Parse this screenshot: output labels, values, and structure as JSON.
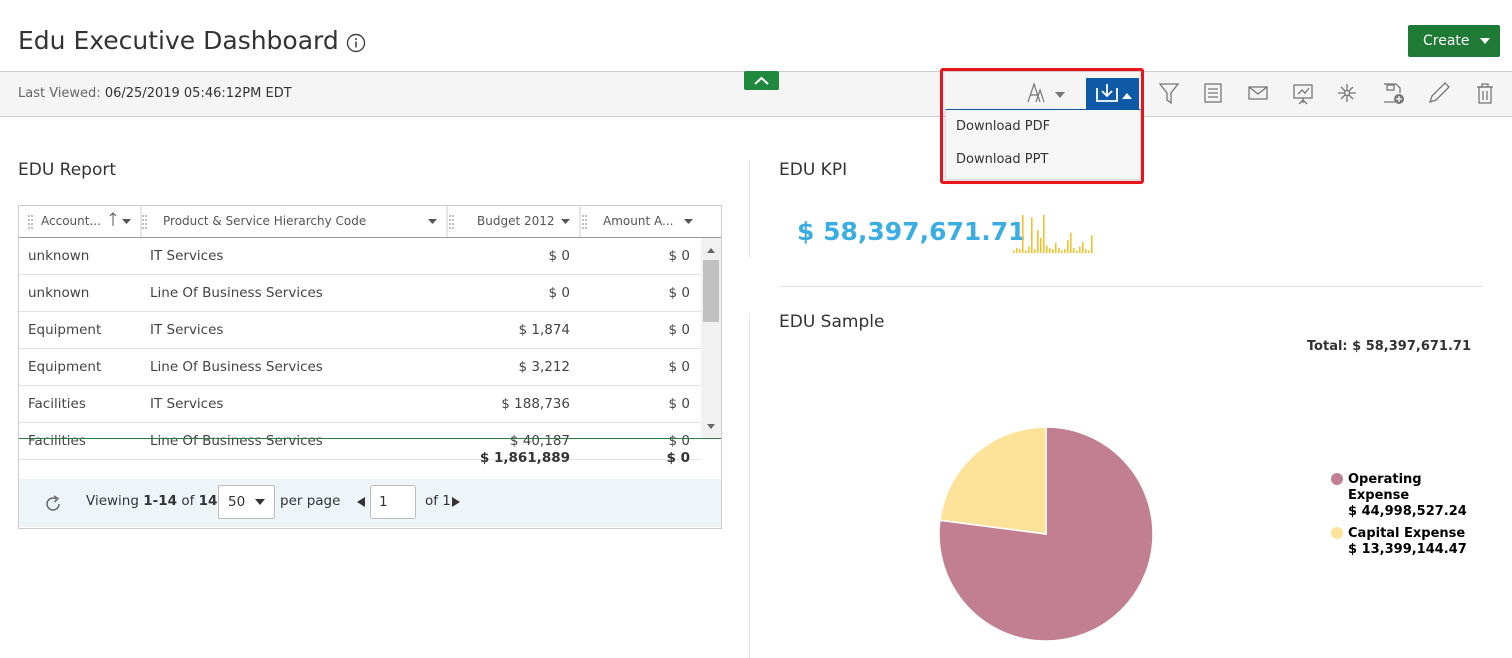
{
  "header": {
    "title": "Edu Executive Dashboard",
    "create_button": "Create"
  },
  "toolbar": {
    "last_viewed_label": "Last Viewed:",
    "last_viewed": "06/25/2019 05:46:12PM EDT"
  },
  "download_menu": {
    "items": [
      "Download PDF",
      "Download PPT"
    ]
  },
  "report": {
    "title": "EDU Report",
    "columns": [
      "Account...",
      "Product & Service Hierarchy Code",
      "Budget 2012",
      "Amount A..."
    ],
    "rows": [
      [
        "unknown",
        "IT Services",
        "$ 0",
        "$ 0"
      ],
      [
        "unknown",
        "Line Of Business Services",
        "$ 0",
        "$ 0"
      ],
      [
        "Equipment",
        "IT Services",
        "$ 1,874",
        "$ 0"
      ],
      [
        "Equipment",
        "Line Of Business Services",
        "$ 3,212",
        "$ 0"
      ],
      [
        "Facilities",
        "IT Services",
        "$ 188,736",
        "$ 0"
      ],
      [
        "Facilities",
        "Line Of Business Services",
        "$ 40,187",
        "$ 0"
      ]
    ],
    "totals": [
      "$ 1,861,889",
      "$ 0"
    ],
    "pagination": {
      "viewing": "Viewing",
      "range": "1-14",
      "of": "of",
      "count": "14",
      "per_page_value": "50",
      "per_page": "per page",
      "page": "1",
      "of_pages": "of 1"
    }
  },
  "kpi": {
    "title": "EDU KPI",
    "value": "$ 58,397,671.71",
    "sparkline": [
      2,
      4,
      3,
      30,
      2,
      5,
      28,
      3,
      18,
      12,
      30,
      6,
      4,
      3,
      8,
      4,
      2,
      3,
      10,
      16,
      4,
      2,
      5,
      9,
      3,
      2,
      14
    ]
  },
  "chart_data": {
    "type": "pie",
    "title": "EDU Sample",
    "total_label": "Total: $ 58,397,671.71",
    "categories": [
      "Operating Expense",
      "Capital Expense"
    ],
    "values": [
      44998527.24,
      13399144.47
    ],
    "value_labels": [
      "$ 44,998,527.24",
      "$ 13,399,144.47"
    ],
    "colors": [
      "#c27f91",
      "#fde39a"
    ]
  }
}
